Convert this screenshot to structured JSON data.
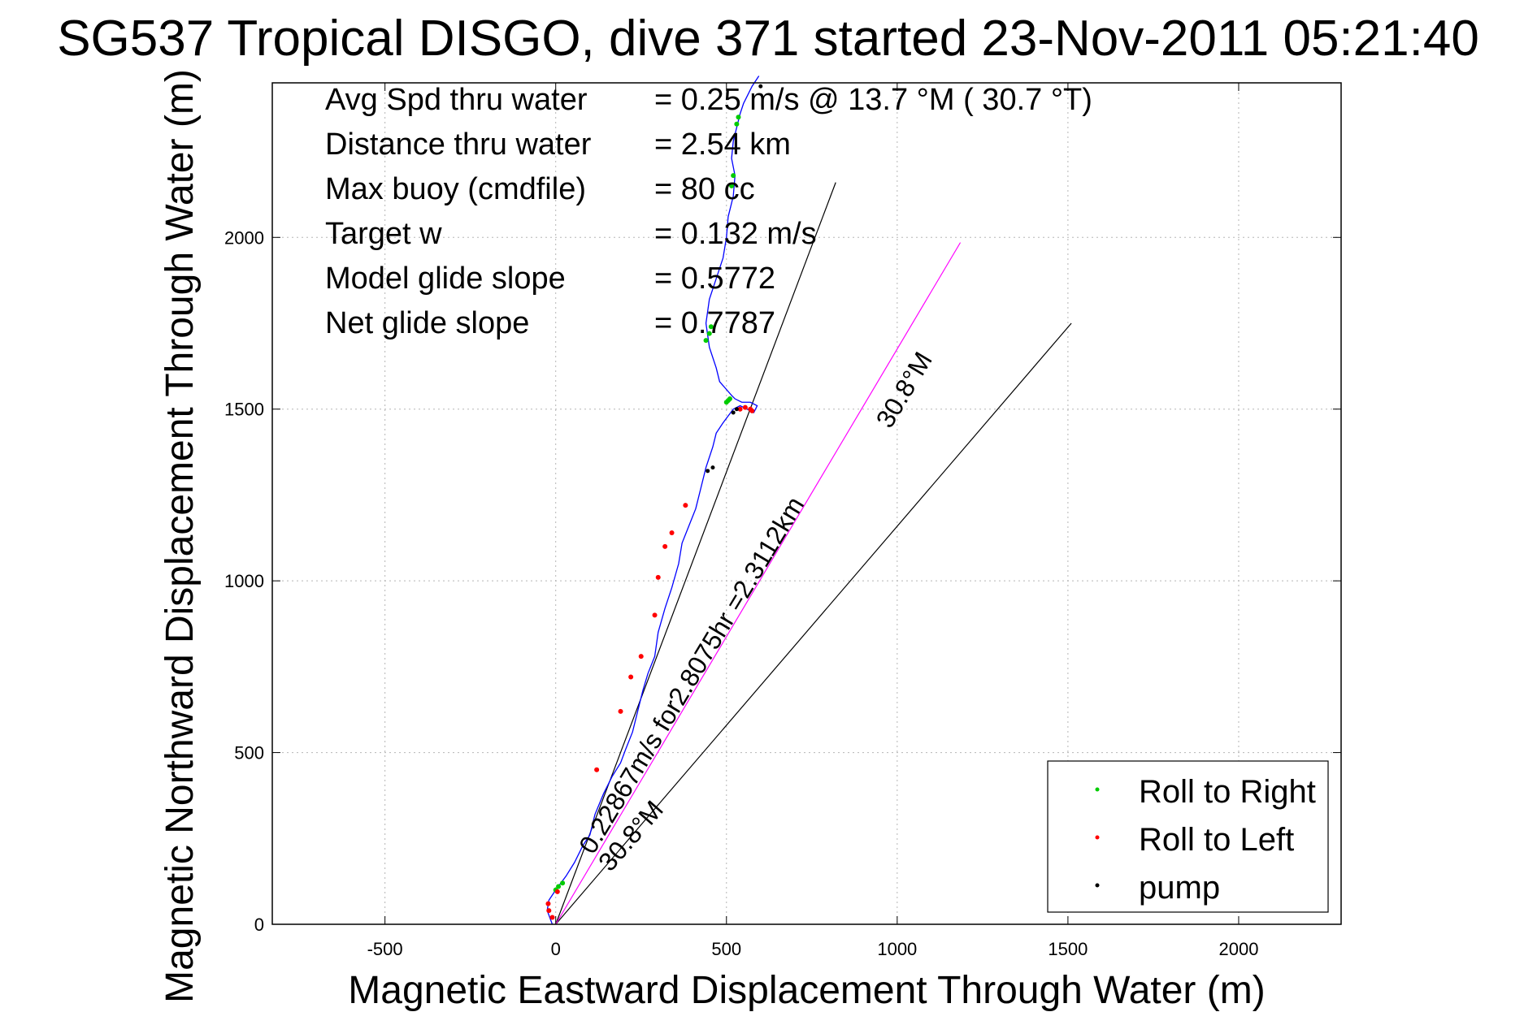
{
  "chart_data": {
    "type": "line",
    "title": "SG537 Tropical DISGO, dive 371 started 23-Nov-2011 05:21:40",
    "xlabel": "Magnetic Eastward Displacement Through Water (m)",
    "ylabel": "Magnetic Northward Displacement Through Water (m)",
    "xlim": [
      -830,
      2300
    ],
    "ylim": [
      0,
      2450
    ],
    "xticks": [
      -500,
      0,
      500,
      1000,
      1500,
      2000
    ],
    "yticks": [
      0,
      500,
      1000,
      1500,
      2000
    ],
    "grid": true,
    "legend_position": "bottom-right",
    "info_lines": [
      {
        "label": "Avg Spd thru water",
        "value": "=  0.25 m/s @  13.7 °M ( 30.7 °T)"
      },
      {
        "label": "Distance thru water",
        "value": "=  2.54 km"
      },
      {
        "label": "Max buoy (cmdfile)",
        "value": "= 80 cc"
      },
      {
        "label": "Target w",
        "value": "= 0.132 m/s"
      },
      {
        "label": "Model glide slope",
        "value": "= 0.5772"
      },
      {
        "label": "Net glide slope",
        "value": "= 0.7787"
      }
    ],
    "track": {
      "color": "#0000ff",
      "x": [
        -10,
        -25,
        -20,
        0,
        15,
        30,
        55,
        80,
        100,
        115,
        140,
        165,
        190,
        205,
        225,
        240,
        255,
        270,
        290,
        300,
        320,
        340,
        360,
        370,
        390,
        410,
        425,
        440,
        460,
        470,
        490,
        505,
        520,
        540,
        560,
        580,
        590,
        570,
        545,
        525,
        515,
        480,
        470,
        450,
        440,
        450,
        470,
        490,
        500,
        505,
        520,
        525,
        515,
        520,
        530,
        540,
        550,
        560,
        575,
        595
      ],
      "y": [
        0,
        40,
        70,
        100,
        120,
        140,
        180,
        230,
        260,
        320,
        380,
        430,
        470,
        510,
        560,
        620,
        680,
        730,
        780,
        850,
        920,
        980,
        1050,
        1110,
        1160,
        1210,
        1270,
        1330,
        1390,
        1430,
        1460,
        1480,
        1500,
        1510,
        1500,
        1490,
        1510,
        1520,
        1520,
        1530,
        1540,
        1580,
        1620,
        1680,
        1750,
        1820,
        1880,
        1940,
        2000,
        2060,
        2120,
        2180,
        2230,
        2280,
        2320,
        2360,
        2390,
        2410,
        2440,
        2470
      ]
    },
    "roll_right_points": {
      "color": "#00cc00",
      "x": [
        0,
        8,
        20,
        440,
        450,
        455,
        500,
        505,
        510,
        515,
        520,
        530,
        535
      ],
      "y": [
        100,
        110,
        120,
        1700,
        1720,
        1740,
        1520,
        1525,
        1530,
        2150,
        2180,
        2330,
        2350
      ]
    },
    "roll_left_points": {
      "color": "#ff0000",
      "x": [
        -10,
        -20,
        -22,
        5,
        120,
        190,
        220,
        250,
        290,
        300,
        320,
        340,
        380,
        540,
        555,
        570,
        575
      ],
      "y": [
        20,
        40,
        60,
        95,
        450,
        620,
        720,
        780,
        900,
        1010,
        1100,
        1140,
        1220,
        1500,
        1505,
        1500,
        1495
      ]
    },
    "pump_points": {
      "color": "#000000",
      "x": [
        445,
        460,
        520,
        530,
        600
      ],
      "y": [
        1320,
        1330,
        1490,
        1500,
        2440
      ]
    },
    "reference_lines": [
      {
        "color": "#000000",
        "x": [
          0,
          820
        ],
        "y": [
          0,
          2160
        ]
      },
      {
        "color": "#000000",
        "x": [
          0,
          1510
        ],
        "y": [
          0,
          1750
        ]
      },
      {
        "color": "#ff00ff",
        "x": [
          0,
          1185
        ],
        "y": [
          0,
          1985
        ]
      }
    ],
    "annotations": [
      {
        "text": "0.22867m/s for2.8075hr =2.3112km",
        "x": 110,
        "y": 200,
        "angle": 59
      },
      {
        "text": "30.8°M",
        "x": 160,
        "y": 150,
        "angle": 49
      },
      {
        "text": "30.8°M",
        "x": 980,
        "y": 1440,
        "angle": 59
      }
    ],
    "legend": [
      {
        "label": "Roll to Right",
        "color": "#00cc00"
      },
      {
        "label": "Roll to Left",
        "color": "#ff0000"
      },
      {
        "label": "pump",
        "color": "#000000"
      }
    ]
  }
}
